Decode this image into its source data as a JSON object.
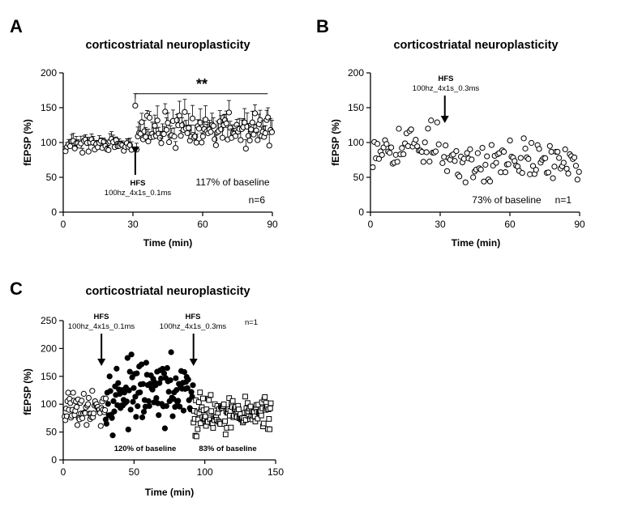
{
  "panels": [
    {
      "id": "A",
      "label": "A",
      "title": "corticostriatal neuroplasticity"
    },
    {
      "id": "B",
      "label": "B",
      "title": "corticostriatal neuroplasticity"
    },
    {
      "id": "C",
      "label": "C",
      "title": "corticostriatal neuroplasticity"
    }
  ],
  "chart_data": [
    {
      "panel": "A",
      "type": "scatter",
      "title": "corticostriatal neuroplasticity",
      "xlabel": "Time (min)",
      "ylabel": "fEPSP (%)",
      "xlim": [
        0,
        90
      ],
      "ylim": [
        0,
        200
      ],
      "xticks": [
        0,
        30,
        60,
        90
      ],
      "yticks": [
        0,
        50,
        100,
        150,
        200
      ],
      "series": [
        {
          "marker": "open-circle",
          "error_bars": true,
          "baseline": {
            "t_start": 1,
            "t_end": 30,
            "step": 0.66,
            "mean": 98,
            "spread": 6,
            "err": 8
          },
          "post": {
            "t_start": 31,
            "t_end": 90,
            "step": 0.56,
            "mean": 117,
            "spread": 12,
            "err": 14,
            "first_value": 153
          }
        }
      ],
      "annotations": {
        "hfs_label": "HFS",
        "hfs_protocol": "100hz_4x1s_0.1ms",
        "hfs_time": 31,
        "significance": "**",
        "result": "117% of baseline",
        "n": "n=6"
      }
    },
    {
      "panel": "B",
      "type": "scatter",
      "title": "corticostriatal neuroplasticity",
      "xlabel": "Time (min)",
      "ylabel": "fEPSP (%)",
      "xlim": [
        0,
        90
      ],
      "ylim": [
        0,
        200
      ],
      "xticks": [
        0,
        30,
        60,
        90
      ],
      "yticks": [
        0,
        50,
        100,
        150,
        200
      ],
      "series": [
        {
          "marker": "open-circle",
          "baseline": {
            "t_start": 1,
            "t_end": 30,
            "step": 0.66,
            "mean": 98,
            "spread": 16
          },
          "post": {
            "t_start": 31,
            "t_end": 90,
            "step": 0.66,
            "mean": 73,
            "spread": 15
          }
        }
      ],
      "annotations": {
        "hfs_label": "HFS",
        "hfs_protocol": "100hz_4x1s_0.3ms",
        "hfs_time": 32,
        "result": "73% of baseline",
        "n": "n=1"
      }
    },
    {
      "panel": "C",
      "type": "scatter",
      "title": "corticostriatal neuroplasticity",
      "xlabel": "Time (min)",
      "ylabel": "fEPSP (%)",
      "xlim": [
        0,
        150
      ],
      "ylim": [
        0,
        250
      ],
      "xticks": [
        0,
        50,
        100,
        150
      ],
      "yticks": [
        0,
        50,
        100,
        150,
        200,
        250
      ],
      "series": [
        {
          "marker": "open-circle",
          "t_start": 1,
          "t_end": 30,
          "step": 0.5,
          "mean": 96,
          "spread": 16
        },
        {
          "marker": "filled-circle",
          "t_start": 30,
          "t_end": 92,
          "step": 0.55,
          "mean": 120,
          "spread": 26
        },
        {
          "marker": "open-square",
          "t_start": 92,
          "t_end": 147,
          "step": 0.42,
          "mean": 83,
          "spread": 16
        }
      ],
      "annotations": {
        "hfs1_label": "HFS",
        "hfs1_protocol": "100hz_4x1s_0.1ms",
        "hfs1_time": 27,
        "hfs2_label": "HFS",
        "hfs2_protocol": "100hz_4x1s_0.3ms",
        "hfs2_time": 92,
        "result1": "120% of baseline",
        "result2": "83% of baseline",
        "n": "n=1"
      }
    }
  ]
}
